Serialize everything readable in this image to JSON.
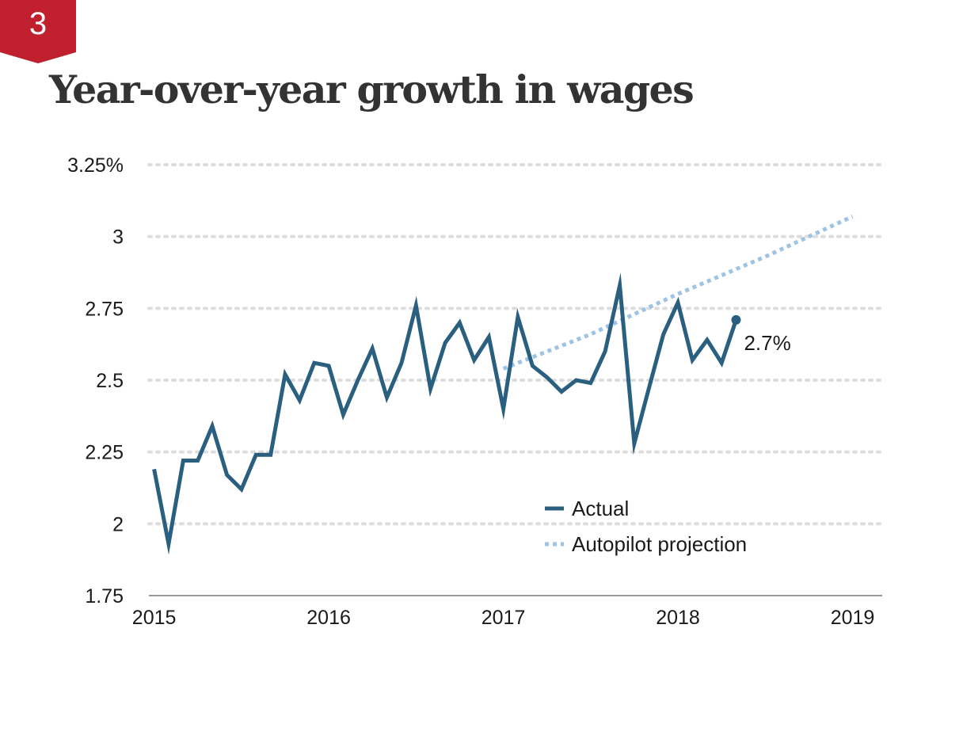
{
  "badge": {
    "number": "3",
    "color": "#c0202e"
  },
  "title": "Year-over-year growth in wages",
  "colors": {
    "actual": "#2a5f80",
    "projection": "#9dc3e6",
    "grid": "#dddddd",
    "axis": "#999999"
  },
  "chart_data": {
    "type": "line",
    "title": "Year-over-year growth in wages",
    "xlabel": "",
    "ylabel": "",
    "xlim": [
      2014.97,
      2019.17
    ],
    "ylim": [
      1.75,
      3.25
    ],
    "grid": true,
    "legend_position": "bottom-center",
    "y_ticks": [
      {
        "value": 1.75,
        "label": "1.75"
      },
      {
        "value": 2.0,
        "label": "2"
      },
      {
        "value": 2.25,
        "label": "2.25"
      },
      {
        "value": 2.5,
        "label": "2.5"
      },
      {
        "value": 2.75,
        "label": "2.75"
      },
      {
        "value": 3.0,
        "label": "3"
      },
      {
        "value": 3.25,
        "label": "3.25%"
      }
    ],
    "x_ticks": [
      {
        "value": 2015,
        "label": "2015"
      },
      {
        "value": 2016,
        "label": "2016"
      },
      {
        "value": 2017,
        "label": "2017"
      },
      {
        "value": 2018,
        "label": "2018"
      },
      {
        "value": 2019,
        "label": "2019"
      }
    ],
    "series": [
      {
        "name": "Actual",
        "style": "solid",
        "x": [
          2015.0,
          2015.083,
          2015.167,
          2015.25,
          2015.333,
          2015.417,
          2015.5,
          2015.583,
          2015.667,
          2015.75,
          2015.833,
          2015.917,
          2016.0,
          2016.083,
          2016.167,
          2016.25,
          2016.333,
          2016.417,
          2016.5,
          2016.583,
          2016.667,
          2016.75,
          2016.833,
          2016.917,
          2017.0,
          2017.083,
          2017.167,
          2017.25,
          2017.333,
          2017.417,
          2017.5,
          2017.583,
          2017.667,
          2017.75,
          2017.833,
          2017.917,
          2018.0,
          2018.083,
          2018.167,
          2018.25,
          2018.333
        ],
        "y": [
          2.19,
          1.93,
          2.22,
          2.22,
          2.34,
          2.17,
          2.12,
          2.24,
          2.24,
          2.52,
          2.43,
          2.56,
          2.55,
          2.38,
          2.5,
          2.61,
          2.44,
          2.56,
          2.76,
          2.47,
          2.63,
          2.7,
          2.57,
          2.65,
          2.4,
          2.72,
          2.55,
          2.51,
          2.46,
          2.5,
          2.49,
          2.6,
          2.83,
          2.28,
          2.47,
          2.66,
          2.77,
          2.57,
          2.64,
          2.56,
          2.71
        ]
      },
      {
        "name": "Autopilot projection",
        "style": "dotted",
        "x": [
          2017.0,
          2017.5,
          2018.0,
          2018.5,
          2019.0
        ],
        "y": [
          2.54,
          2.66,
          2.8,
          2.93,
          3.07
        ]
      }
    ],
    "annotations": [
      {
        "label": "2.7%",
        "x": 2018.333,
        "y": 2.71
      }
    ]
  }
}
